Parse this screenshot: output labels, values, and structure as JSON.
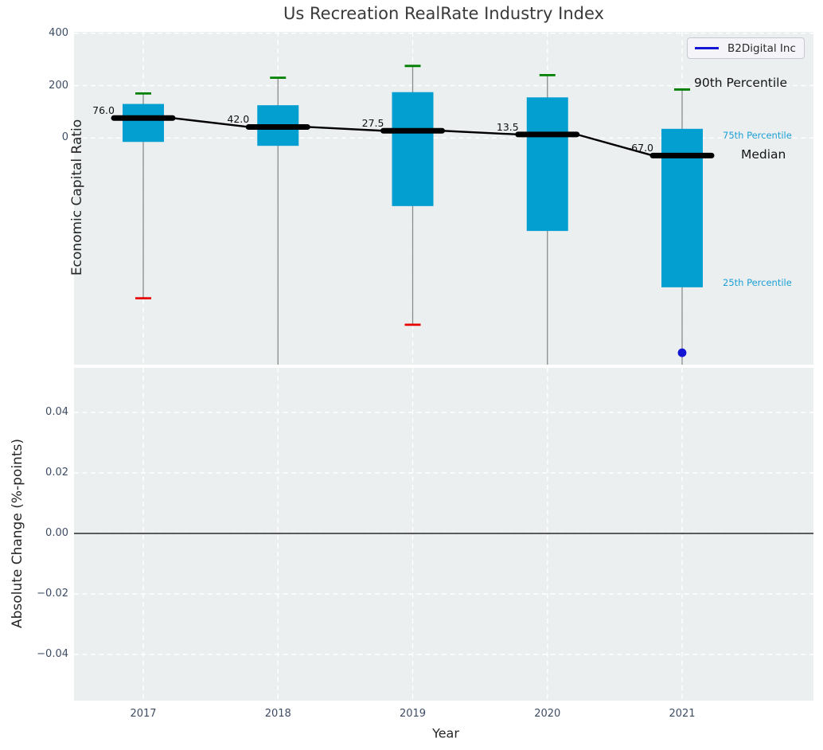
{
  "title": "Us Recreation RealRate Industry Index",
  "legend": {
    "label": "B2Digital Inc",
    "color": "#1515d6"
  },
  "colors": {
    "panel_bg": "#ebeff0",
    "grid": "#ffffff",
    "box_fill": "#049fd1",
    "green_cap": "#008000",
    "red_cap": "#e80000",
    "median_line": "#000000",
    "whisker": "#8a8a8a",
    "company_blue": "#1515d6",
    "tick_label": "#3e4c63",
    "percentile_cyan": "#1c9fd6"
  },
  "top_panel": {
    "ylabel": "Economic Capital Ratio",
    "ytick_labels": [
      "400",
      "200",
      "0"
    ],
    "annotations": {
      "p90": "90th Percentile",
      "p75": "75th Percentile",
      "median": "Median",
      "p25": "25th Percentile"
    }
  },
  "bottom_panel": {
    "ylabel": "Absolute Change (%-points)",
    "ytick_labels": [
      "0.04",
      "0.02",
      "0.00",
      "−0.02",
      "−0.04"
    ],
    "xlabel": "Year"
  },
  "x_tick_labels": [
    "2017",
    "2018",
    "2019",
    "2020",
    "2021"
  ],
  "chart_data": {
    "type": "box",
    "title": "Us Recreation RealRate Industry Index",
    "xlabel": "Year",
    "categories": [
      2017,
      2018,
      2019,
      2020,
      2021
    ],
    "legend_entries": [
      {
        "label": "B2Digital Inc",
        "position": "upper right"
      }
    ],
    "panels": [
      {
        "name": "economic-capital-ratio",
        "ylabel": "Economic Capital Ratio",
        "yticks": [
          400,
          200,
          0
        ],
        "ylim": [
          -880,
          420
        ],
        "grid": true,
        "boxes": {
          "p90": [
            170,
            230,
            275,
            240,
            185
          ],
          "p75": [
            130,
            125,
            175,
            155,
            35
          ],
          "median": [
            76.0,
            42.0,
            27.5,
            13.5,
            -67.0
          ],
          "p25": [
            -15,
            -30,
            -260,
            -355,
            -570
          ],
          "p10": [
            -612,
            null,
            -713,
            null,
            null
          ]
        },
        "p10_note": "null = lower whisker extends below visible axis (clipped, no cap shown)",
        "median_labels": [
          "76.0",
          "42.0",
          "27.5",
          "13.5",
          "-67.0"
        ],
        "median_trend_line": true,
        "company_point": {
          "name": "B2Digital Inc",
          "x": 2021,
          "y": -820
        }
      },
      {
        "name": "absolute-change",
        "ylabel": "Absolute Change (%-points)",
        "yticks": [
          0.04,
          0.02,
          0.0,
          -0.02,
          -0.04
        ],
        "ylim": [
          -0.055,
          0.055
        ],
        "grid": true,
        "series": [],
        "zero_line": 0.0
      }
    ]
  }
}
